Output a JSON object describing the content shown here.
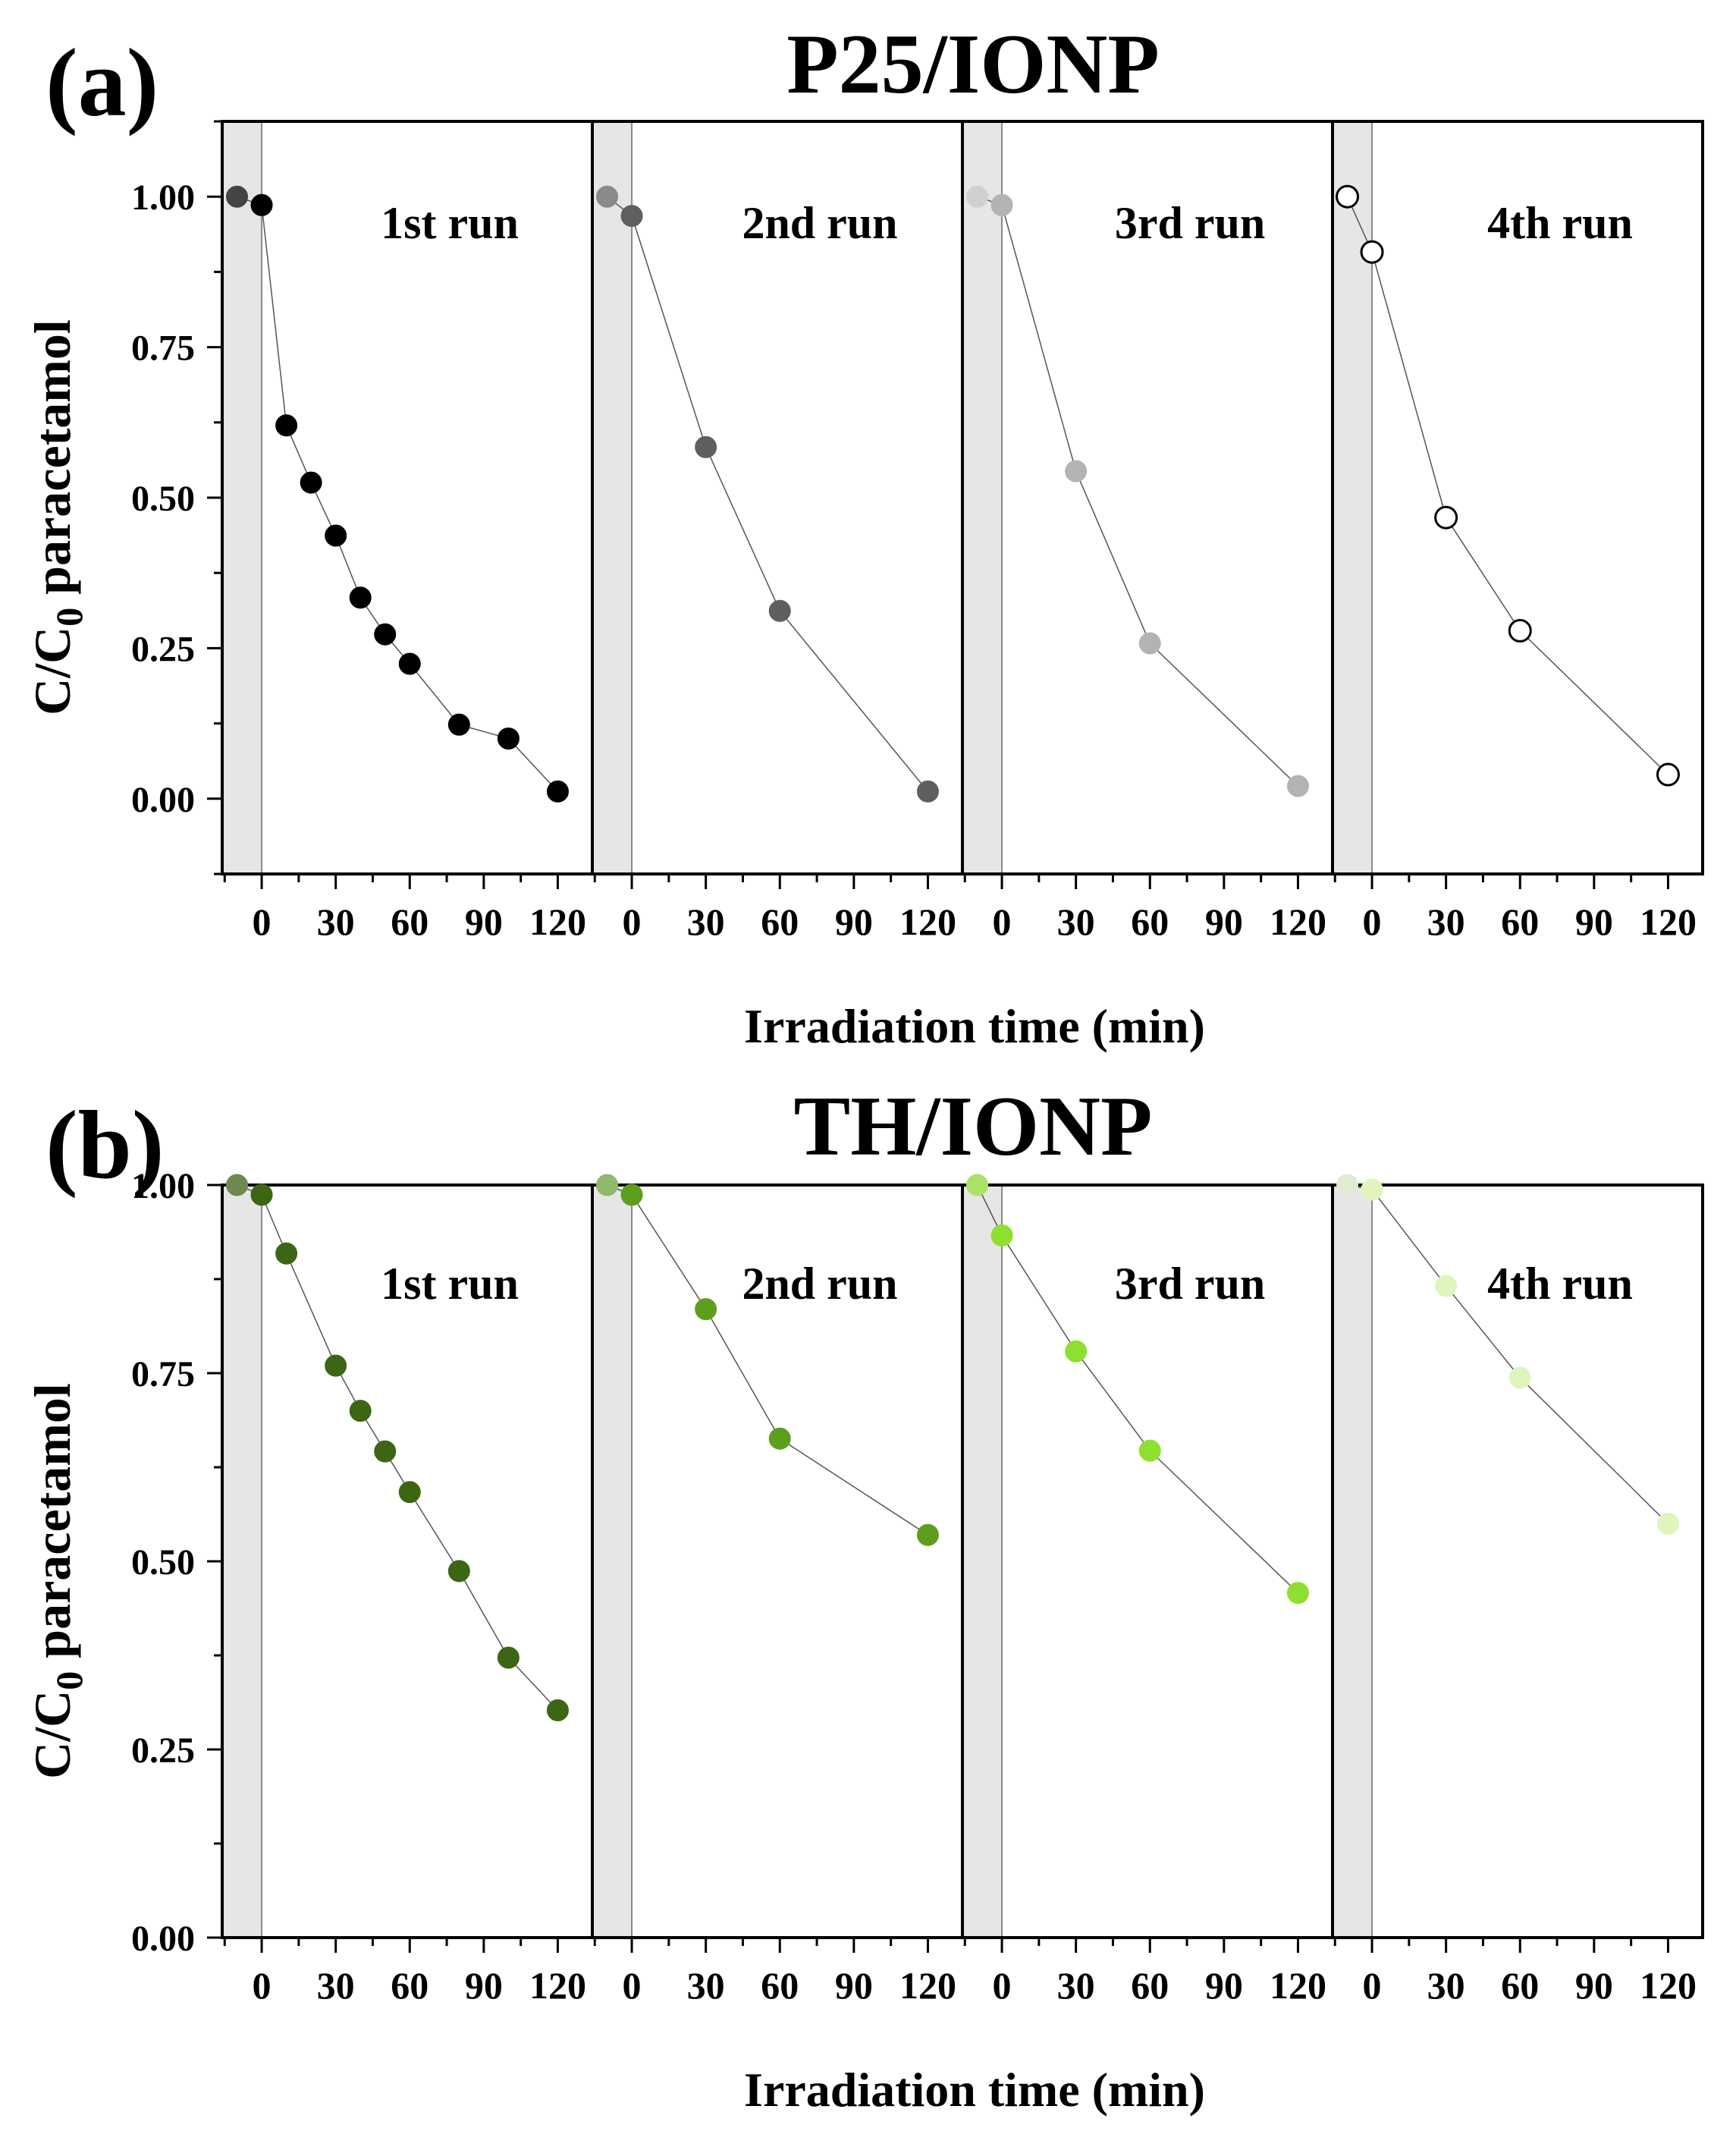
{
  "x_axis_label": "Irradiation time (min)",
  "y_axis_label_main": "C/C",
  "y_axis_label_sub": "0",
  "y_axis_label_tail": " paracetamol",
  "x_ticks": [
    0,
    30,
    60,
    90,
    120
  ],
  "x_range_per_run": [
    -16,
    134
  ],
  "dark_period": [
    -16,
    0
  ],
  "chart_data": [
    {
      "type": "scatter",
      "panel_label": "(a)",
      "title": "P25/IONP",
      "xlabel": "Irradiation time (min)",
      "ylabel": "C/C0 paracetamol",
      "ylim": [
        -0.125,
        1.125
      ],
      "y_ticks": [
        0.0,
        0.25,
        0.5,
        0.75,
        1.0
      ],
      "y_tick_labels": [
        "0.00",
        "0.25",
        "0.50",
        "0.75",
        "1.00"
      ],
      "series": [
        {
          "name": "1st run",
          "color": "#000000",
          "edge": "#000000",
          "x": [
            -10,
            0,
            10,
            20,
            30,
            40,
            50,
            60,
            80,
            100,
            120
          ],
          "values": [
            1.0,
            0.986,
            0.62,
            0.525,
            0.437,
            0.334,
            0.273,
            0.224,
            0.123,
            0.1,
            0.012
          ],
          "dark_color": "#444444"
        },
        {
          "name": "2nd run",
          "color": "#5f5f5f",
          "edge": "#5f5f5f",
          "x": [
            -10,
            0,
            30,
            60,
            120
          ],
          "values": [
            1.0,
            0.968,
            0.584,
            0.312,
            0.012
          ],
          "dark_color": "#8a8a8a"
        },
        {
          "name": "3rd run",
          "color": "#b3b3b3",
          "edge": "#b3b3b3",
          "x": [
            -10,
            0,
            30,
            60,
            120
          ],
          "values": [
            1.0,
            0.986,
            0.544,
            0.258,
            0.021
          ],
          "dark_color": "#d0d0d0"
        },
        {
          "name": "4th run",
          "color": "#ffffff",
          "edge": "#000000",
          "x": [
            -10,
            0,
            30,
            60,
            120
          ],
          "values": [
            1.0,
            0.908,
            0.467,
            0.279,
            0.04
          ],
          "dark_color": "#ffffff"
        }
      ]
    },
    {
      "type": "scatter",
      "panel_label": "(b)",
      "title": "TH/IONP",
      "xlabel": "Irradiation time (min)",
      "ylabel": "C/C0 paracetamol",
      "ylim": [
        0.0,
        1.0
      ],
      "y_ticks": [
        0.0,
        0.25,
        0.5,
        0.75,
        1.0
      ],
      "y_tick_labels": [
        "0.00",
        "0.25",
        "0.50",
        "0.75",
        "1.00"
      ],
      "series": [
        {
          "name": "1st run",
          "color": "#3d6614",
          "edge": "#3d6614",
          "x": [
            -10,
            0,
            10,
            30,
            40,
            50,
            60,
            80,
            100,
            120
          ],
          "values": [
            1.0,
            0.987,
            0.909,
            0.76,
            0.7,
            0.646,
            0.592,
            0.487,
            0.372,
            0.302
          ],
          "dark_color": "#6e8a50"
        },
        {
          "name": "2nd run",
          "color": "#5e9e1e",
          "edge": "#5e9e1e",
          "x": [
            -10,
            0,
            30,
            60,
            120
          ],
          "values": [
            1.0,
            0.987,
            0.835,
            0.663,
            0.535
          ],
          "dark_color": "#8fb86a"
        },
        {
          "name": "3rd run",
          "color": "#8fdf30",
          "edge": "#8fdf30",
          "x": [
            -10,
            0,
            30,
            60,
            120
          ],
          "values": [
            1.0,
            0.933,
            0.779,
            0.647,
            0.458
          ],
          "dark_color": "#a9e266"
        },
        {
          "name": "4th run",
          "color": "#dff5bd",
          "edge": "#dff5bd",
          "x": [
            -10,
            0,
            30,
            60,
            120
          ],
          "values": [
            1.0,
            0.994,
            0.866,
            0.744,
            0.55
          ],
          "dark_color": "#e0ecd2"
        }
      ]
    }
  ]
}
